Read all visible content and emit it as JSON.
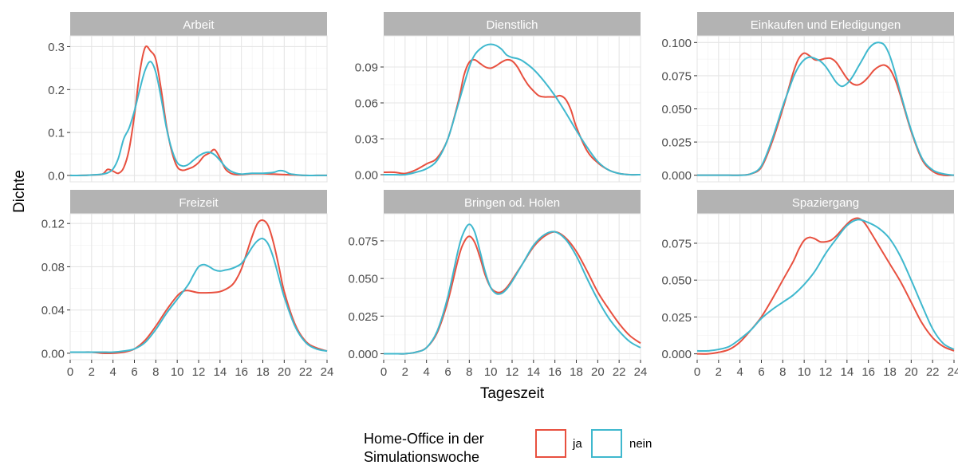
{
  "chart_data": {
    "type": "line",
    "xlabel": "Tageszeit",
    "ylabel": "Dichte",
    "xlim": [
      0,
      24
    ],
    "x_ticks": [
      0,
      2,
      4,
      6,
      8,
      10,
      12,
      14,
      16,
      18,
      20,
      22,
      24
    ],
    "grid": true,
    "legend": {
      "title_lines": [
        "Home-Office in der",
        "Simulationswoche"
      ],
      "placement": "bottom",
      "entries": [
        {
          "name": "ja",
          "color": "#e8503f"
        },
        {
          "name": "nein",
          "color": "#3fb8ce"
        }
      ]
    },
    "colors": {
      "strip": "#b3b3b3",
      "strip_text": "#ffffff",
      "grid": "#e5e5e5",
      "axis_text": "#4d4d4d"
    },
    "panels": [
      {
        "title": "Arbeit",
        "ylim": [
          -0.015,
          0.325
        ],
        "y_ticks": [
          0.0,
          0.1,
          0.2,
          0.3
        ],
        "y_tick_labels": [
          "0.0",
          "0.1",
          "0.2",
          "0.3"
        ],
        "series": [
          {
            "name": "ja",
            "x": [
              0,
              1,
              2,
              3,
              3.5,
              4,
              4.5,
              5,
              5.5,
              6,
              6.5,
              7,
              7.5,
              8,
              8.5,
              9,
              9.5,
              10,
              10.5,
              11,
              11.5,
              12,
              12.5,
              13,
              13.5,
              14,
              14.5,
              15,
              15.5,
              16,
              16.5,
              17,
              18,
              19,
              20,
              21,
              22,
              23,
              24
            ],
            "y": [
              0.0,
              0.0,
              0.001,
              0.003,
              0.014,
              0.01,
              0.005,
              0.018,
              0.06,
              0.14,
              0.24,
              0.298,
              0.29,
              0.27,
              0.2,
              0.115,
              0.055,
              0.02,
              0.012,
              0.015,
              0.02,
              0.03,
              0.045,
              0.052,
              0.06,
              0.04,
              0.015,
              0.005,
              0.002,
              0.002,
              0.003,
              0.004,
              0.004,
              0.003,
              0.002,
              0.001,
              0.0,
              0.0,
              0.0
            ]
          },
          {
            "name": "nein",
            "x": [
              0,
              1,
              2,
              3,
              3.5,
              4,
              4.5,
              5,
              5.5,
              6,
              6.5,
              7,
              7.5,
              8,
              8.5,
              9,
              9.5,
              10,
              10.5,
              11,
              11.5,
              12,
              12.5,
              13,
              13.5,
              14,
              14.5,
              15,
              15.5,
              16,
              16.5,
              17,
              18,
              19,
              19.5,
              20,
              20.5,
              21,
              22,
              23,
              24
            ],
            "y": [
              0.0,
              0.0,
              0.001,
              0.003,
              0.006,
              0.015,
              0.04,
              0.085,
              0.11,
              0.15,
              0.2,
              0.245,
              0.265,
              0.24,
              0.18,
              0.11,
              0.06,
              0.03,
              0.022,
              0.025,
              0.035,
              0.045,
              0.052,
              0.054,
              0.048,
              0.035,
              0.02,
              0.01,
              0.005,
              0.003,
              0.004,
              0.005,
              0.005,
              0.007,
              0.011,
              0.01,
              0.004,
              0.002,
              0.0,
              0.0,
              0.0
            ]
          }
        ]
      },
      {
        "title": "Dienstlich",
        "ylim": [
          -0.006,
          0.116
        ],
        "y_ticks": [
          0.0,
          0.03,
          0.06,
          0.09
        ],
        "y_tick_labels": [
          "0.00",
          "0.03",
          "0.06",
          "0.09"
        ],
        "series": [
          {
            "name": "ja",
            "x": [
              0,
              1,
              2,
              3,
              4,
              5,
              6,
              7,
              7.5,
              8,
              8.5,
              9,
              9.5,
              10,
              10.5,
              11,
              11.5,
              12,
              12.5,
              13,
              13.5,
              14,
              14.5,
              15,
              15.5,
              16,
              16.5,
              17,
              17.5,
              18,
              19,
              20,
              21,
              22,
              23,
              24
            ],
            "y": [
              0.002,
              0.002,
              0.001,
              0.004,
              0.009,
              0.014,
              0.03,
              0.062,
              0.083,
              0.094,
              0.096,
              0.093,
              0.09,
              0.089,
              0.091,
              0.094,
              0.096,
              0.095,
              0.09,
              0.082,
              0.075,
              0.07,
              0.066,
              0.065,
              0.065,
              0.065,
              0.066,
              0.063,
              0.054,
              0.04,
              0.02,
              0.01,
              0.004,
              0.001,
              0.0,
              0.0
            ]
          },
          {
            "name": "nein",
            "x": [
              0,
              1,
              2,
              3,
              4,
              5,
              6,
              7,
              8,
              8.5,
              9,
              9.5,
              10,
              10.5,
              11,
              11.5,
              12,
              12.5,
              13,
              14,
              15,
              16,
              17,
              18,
              19,
              20,
              21,
              22,
              23,
              24
            ],
            "y": [
              0.0,
              0.0,
              0.0,
              0.002,
              0.005,
              0.012,
              0.03,
              0.06,
              0.09,
              0.1,
              0.105,
              0.108,
              0.109,
              0.108,
              0.105,
              0.1,
              0.098,
              0.097,
              0.095,
              0.088,
              0.078,
              0.066,
              0.052,
              0.037,
              0.023,
              0.011,
              0.004,
              0.001,
              0.0,
              0.0
            ]
          }
        ]
      },
      {
        "title": "Einkaufen und Erledigungen",
        "ylim": [
          -0.005,
          0.105
        ],
        "y_ticks": [
          0.0,
          0.025,
          0.05,
          0.075,
          0.1
        ],
        "y_tick_labels": [
          "0.000",
          "0.025",
          "0.050",
          "0.075",
          "0.100"
        ],
        "series": [
          {
            "name": "ja",
            "x": [
              0,
              1,
              2,
              3,
              4,
              5,
              6,
              7,
              8,
              8.5,
              9,
              9.5,
              10,
              10.5,
              11,
              11.5,
              12,
              12.5,
              13,
              13.5,
              14,
              14.5,
              15,
              15.5,
              16,
              16.5,
              17,
              17.5,
              18,
              18.5,
              19,
              20,
              21,
              22,
              23,
              24
            ],
            "y": [
              0.0,
              0.0,
              0.0,
              0.0,
              0.0,
              0.001,
              0.006,
              0.025,
              0.05,
              0.064,
              0.078,
              0.088,
              0.092,
              0.09,
              0.087,
              0.087,
              0.088,
              0.088,
              0.085,
              0.079,
              0.073,
              0.069,
              0.068,
              0.07,
              0.074,
              0.079,
              0.082,
              0.083,
              0.08,
              0.072,
              0.06,
              0.033,
              0.012,
              0.003,
              0.0,
              0.0
            ]
          },
          {
            "name": "nein",
            "x": [
              0,
              1,
              2,
              3,
              4,
              5,
              6,
              7,
              8,
              8.5,
              9,
              9.5,
              10,
              10.5,
              11,
              11.5,
              12,
              12.5,
              13,
              13.5,
              14,
              14.5,
              15,
              15.5,
              16,
              16.5,
              17,
              17.5,
              18,
              18.5,
              19,
              20,
              21,
              22,
              23,
              24
            ],
            "y": [
              0.0,
              0.0,
              0.0,
              0.0,
              0.0,
              0.001,
              0.007,
              0.027,
              0.052,
              0.063,
              0.074,
              0.082,
              0.087,
              0.089,
              0.088,
              0.086,
              0.082,
              0.076,
              0.07,
              0.067,
              0.069,
              0.074,
              0.081,
              0.088,
              0.095,
              0.099,
              0.1,
              0.098,
              0.09,
              0.077,
              0.062,
              0.034,
              0.013,
              0.004,
              0.001,
              0.0
            ]
          }
        ]
      },
      {
        "title": "Freizeit",
        "ylim": [
          -0.006,
          0.129
        ],
        "y_ticks": [
          0.0,
          0.04,
          0.08,
          0.12
        ],
        "y_tick_labels": [
          "0.00",
          "0.04",
          "0.08",
          "0.12"
        ],
        "series": [
          {
            "name": "ja",
            "x": [
              0,
              1,
              2,
              3,
              4,
              5,
              6,
              7,
              8,
              9,
              10,
              10.5,
              11,
              12,
              13,
              14,
              15,
              15.5,
              16,
              16.5,
              17,
              17.5,
              18,
              18.5,
              19,
              19.5,
              20,
              21,
              22,
              23,
              24
            ],
            "y": [
              0.001,
              0.001,
              0.001,
              0.0,
              0.0,
              0.001,
              0.004,
              0.012,
              0.025,
              0.04,
              0.053,
              0.057,
              0.058,
              0.056,
              0.056,
              0.057,
              0.062,
              0.068,
              0.078,
              0.093,
              0.108,
              0.12,
              0.123,
              0.118,
              0.102,
              0.08,
              0.057,
              0.027,
              0.011,
              0.005,
              0.002
            ]
          },
          {
            "name": "nein",
            "x": [
              0,
              1,
              2,
              3,
              4,
              5,
              6,
              7,
              8,
              9,
              10,
              11,
              11.5,
              12,
              12.5,
              13,
              13.5,
              14,
              14.5,
              15,
              15.5,
              16,
              16.5,
              17,
              17.5,
              18,
              18.5,
              19,
              19.5,
              20,
              21,
              22,
              23,
              24
            ],
            "y": [
              0.001,
              0.001,
              0.001,
              0.001,
              0.001,
              0.002,
              0.004,
              0.01,
              0.022,
              0.037,
              0.05,
              0.063,
              0.072,
              0.08,
              0.082,
              0.08,
              0.077,
              0.076,
              0.077,
              0.078,
              0.08,
              0.083,
              0.09,
              0.098,
              0.104,
              0.106,
              0.101,
              0.088,
              0.07,
              0.052,
              0.025,
              0.01,
              0.004,
              0.002
            ]
          }
        ]
      },
      {
        "title": "Bringen od. Holen",
        "ylim": [
          -0.004,
          0.093
        ],
        "y_ticks": [
          0.0,
          0.025,
          0.05,
          0.075
        ],
        "y_tick_labels": [
          "0.000",
          "0.025",
          "0.050",
          "0.075"
        ],
        "series": [
          {
            "name": "ja",
            "x": [
              0,
              1,
              2,
              3,
              4,
              5,
              6,
              7,
              7.5,
              8,
              8.5,
              9,
              9.5,
              10,
              10.5,
              11,
              11.5,
              12,
              13,
              14,
              15,
              16,
              17,
              18,
              19,
              20,
              21,
              22,
              23,
              24
            ],
            "y": [
              0.0,
              0.0,
              0.0,
              0.001,
              0.004,
              0.014,
              0.035,
              0.064,
              0.074,
              0.078,
              0.074,
              0.064,
              0.052,
              0.044,
              0.041,
              0.041,
              0.044,
              0.049,
              0.06,
              0.071,
              0.078,
              0.081,
              0.077,
              0.068,
              0.055,
              0.041,
              0.03,
              0.02,
              0.012,
              0.007
            ]
          },
          {
            "name": "nein",
            "x": [
              0,
              1,
              2,
              3,
              4,
              5,
              6,
              7,
              7.5,
              8,
              8.5,
              9,
              9.5,
              10,
              10.5,
              11,
              11.5,
              12,
              13,
              14,
              15,
              16,
              17,
              18,
              19,
              20,
              21,
              22,
              23,
              24
            ],
            "y": [
              0.0,
              0.0,
              0.0,
              0.001,
              0.004,
              0.015,
              0.038,
              0.07,
              0.081,
              0.086,
              0.081,
              0.068,
              0.054,
              0.044,
              0.04,
              0.04,
              0.043,
              0.048,
              0.06,
              0.072,
              0.079,
              0.081,
              0.076,
              0.065,
              0.05,
              0.036,
              0.024,
              0.015,
              0.008,
              0.004
            ]
          }
        ]
      },
      {
        "title": "Spaziergang",
        "ylim": [
          -0.004,
          0.095
        ],
        "y_ticks": [
          0.0,
          0.025,
          0.05,
          0.075
        ],
        "y_tick_labels": [
          "0.000",
          "0.025",
          "0.050",
          "0.075"
        ],
        "series": [
          {
            "name": "ja",
            "x": [
              0,
              1,
              2,
              3,
              4,
              5,
              6,
              7,
              8,
              9,
              9.5,
              10,
              10.5,
              11,
              11.5,
              12,
              12.5,
              13,
              13.5,
              14,
              14.5,
              15,
              15.5,
              16,
              17,
              18,
              19,
              20,
              21,
              22,
              23,
              24
            ],
            "y": [
              0.0,
              0.0,
              0.001,
              0.003,
              0.008,
              0.016,
              0.025,
              0.037,
              0.05,
              0.063,
              0.071,
              0.077,
              0.079,
              0.078,
              0.076,
              0.076,
              0.077,
              0.08,
              0.084,
              0.088,
              0.091,
              0.092,
              0.09,
              0.085,
              0.073,
              0.061,
              0.049,
              0.035,
              0.021,
              0.011,
              0.005,
              0.002
            ]
          },
          {
            "name": "nein",
            "x": [
              0,
              1,
              2,
              3,
              4,
              5,
              6,
              7,
              8,
              9,
              10,
              11,
              12,
              13,
              14,
              15,
              16,
              17,
              18,
              19,
              20,
              21,
              22,
              23,
              24
            ],
            "y": [
              0.002,
              0.002,
              0.003,
              0.005,
              0.01,
              0.016,
              0.024,
              0.03,
              0.035,
              0.04,
              0.047,
              0.056,
              0.068,
              0.078,
              0.087,
              0.091,
              0.089,
              0.085,
              0.078,
              0.066,
              0.05,
              0.033,
              0.017,
              0.007,
              0.003
            ]
          }
        ]
      }
    ]
  }
}
